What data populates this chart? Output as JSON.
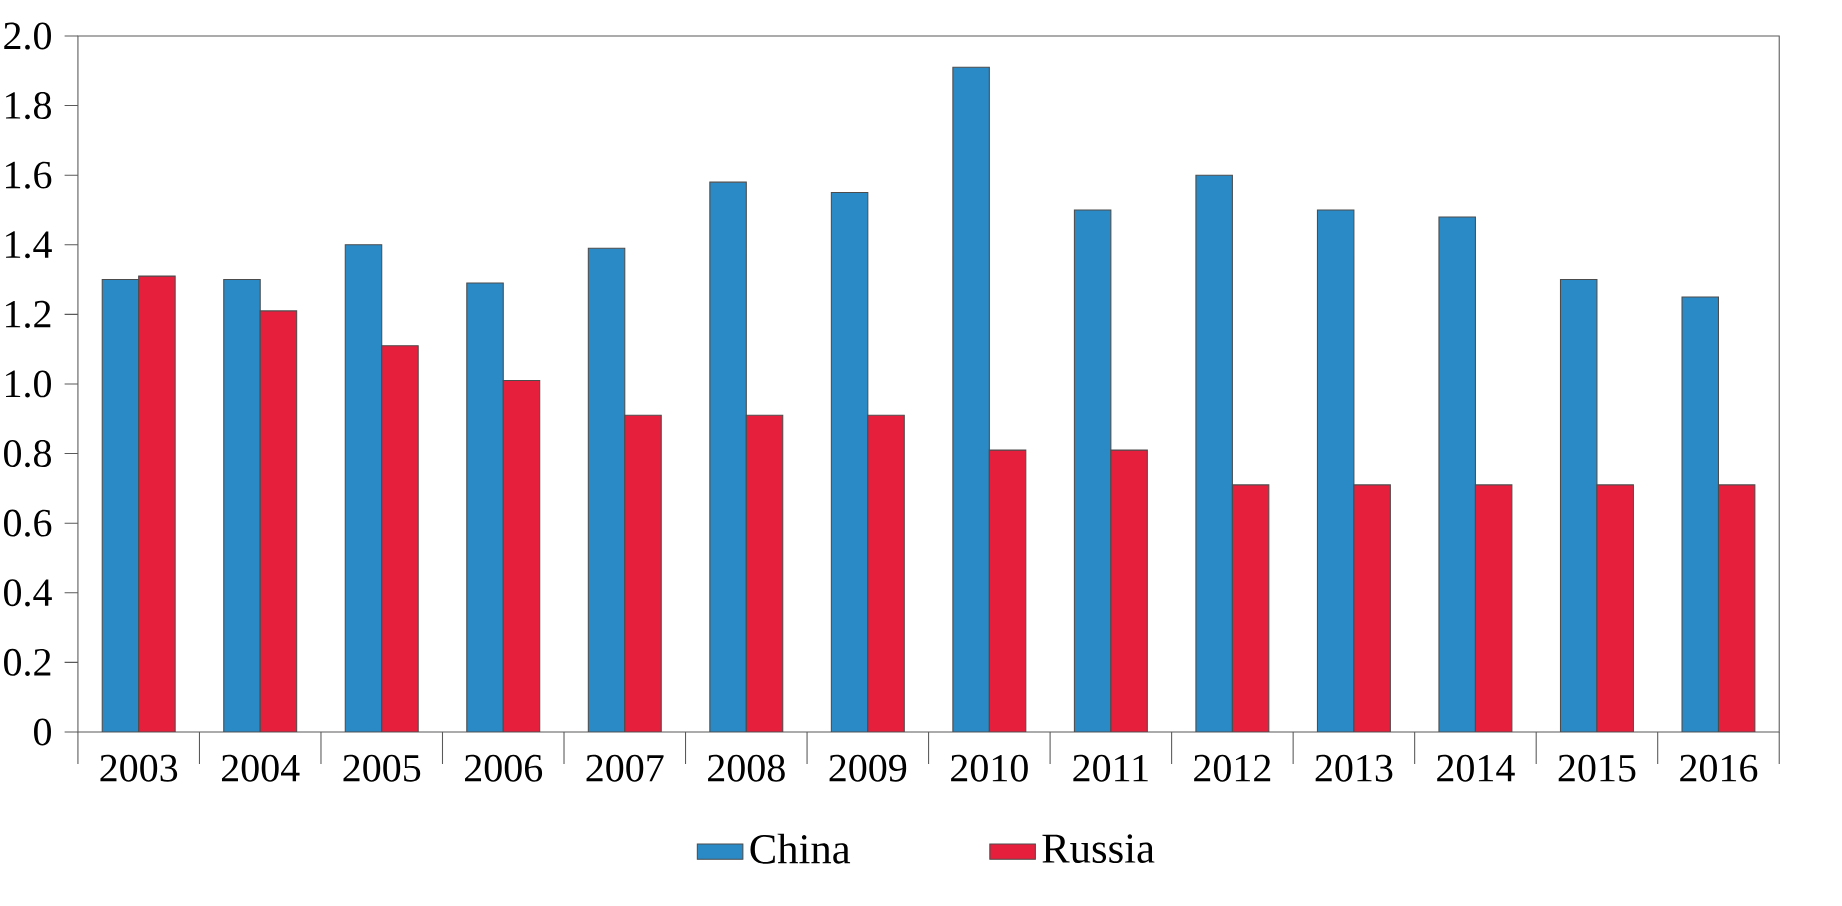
{
  "chart_data": {
    "type": "bar",
    "categories": [
      "2003",
      "2004",
      "2005",
      "2006",
      "2007",
      "2008",
      "2009",
      "2010",
      "2011",
      "2012",
      "2013",
      "2014",
      "2015",
      "2016"
    ],
    "series": [
      {
        "name": "China",
        "color": "#2a8ac6",
        "values": [
          1.3,
          1.3,
          1.4,
          1.29,
          1.39,
          1.58,
          1.55,
          1.91,
          1.5,
          1.6,
          1.5,
          1.48,
          1.3,
          1.25
        ]
      },
      {
        "name": "Russia",
        "color": "#e61f3d",
        "values": [
          1.31,
          1.21,
          1.11,
          1.01,
          0.91,
          0.91,
          0.91,
          0.81,
          0.81,
          0.71,
          0.71,
          0.71,
          0.71,
          0.71
        ]
      }
    ],
    "ylim": [
      0,
      2.0
    ],
    "yticks": [
      0,
      0.2,
      0.4,
      0.6,
      0.8,
      {
        "value": 1.0,
        "label": "1.0"
      },
      1.2,
      1.4,
      1.6,
      1.8,
      {
        "value": 2.0,
        "label": "2.0"
      }
    ],
    "grid": false,
    "legend": "bottom"
  }
}
